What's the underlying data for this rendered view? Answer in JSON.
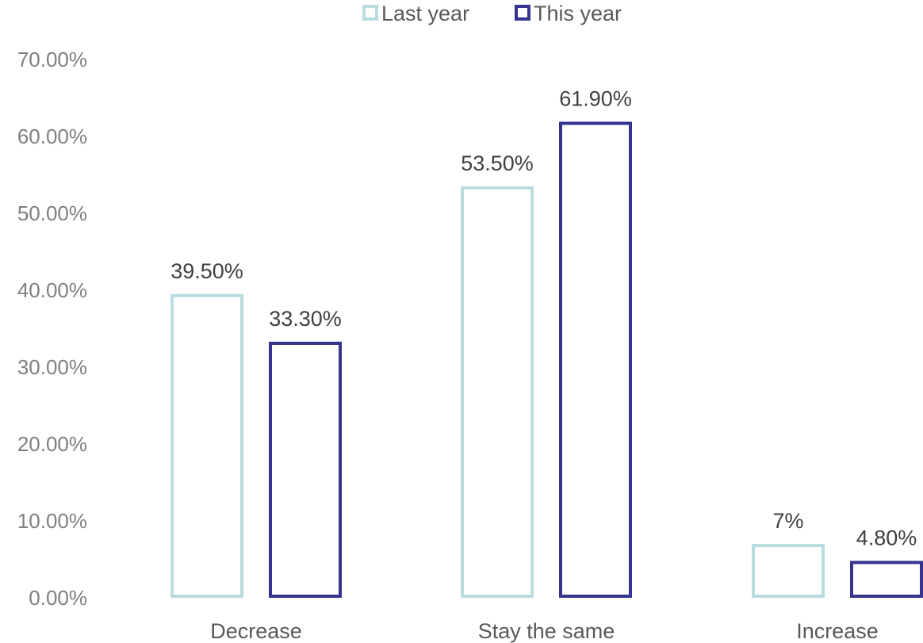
{
  "chart_data": {
    "type": "bar",
    "categories": [
      "Decrease",
      "Stay the same",
      "Increase"
    ],
    "series": [
      {
        "name": "Last year",
        "color": "#b7dde1",
        "values": [
          39.5,
          53.5,
          7
        ],
        "labels": [
          "39.50%",
          "53.50%",
          "7%"
        ]
      },
      {
        "name": "This year",
        "color": "#35348f",
        "values": [
          33.3,
          61.9,
          4.8
        ],
        "labels": [
          "33.30%",
          "61.90%",
          "4.80%"
        ]
      }
    ],
    "ylim": [
      0,
      70
    ],
    "yticks": [
      0,
      10,
      20,
      30,
      40,
      50,
      60,
      70
    ],
    "ytick_labels": [
      "0.00%",
      "10.00%",
      "20.00%",
      "30.00%",
      "40.00%",
      "50.00%",
      "60.00%",
      "70.00%"
    ],
    "bar_style": "outline",
    "grid": false,
    "legend_position": "top-center",
    "title": "",
    "xlabel": "",
    "ylabel": ""
  }
}
